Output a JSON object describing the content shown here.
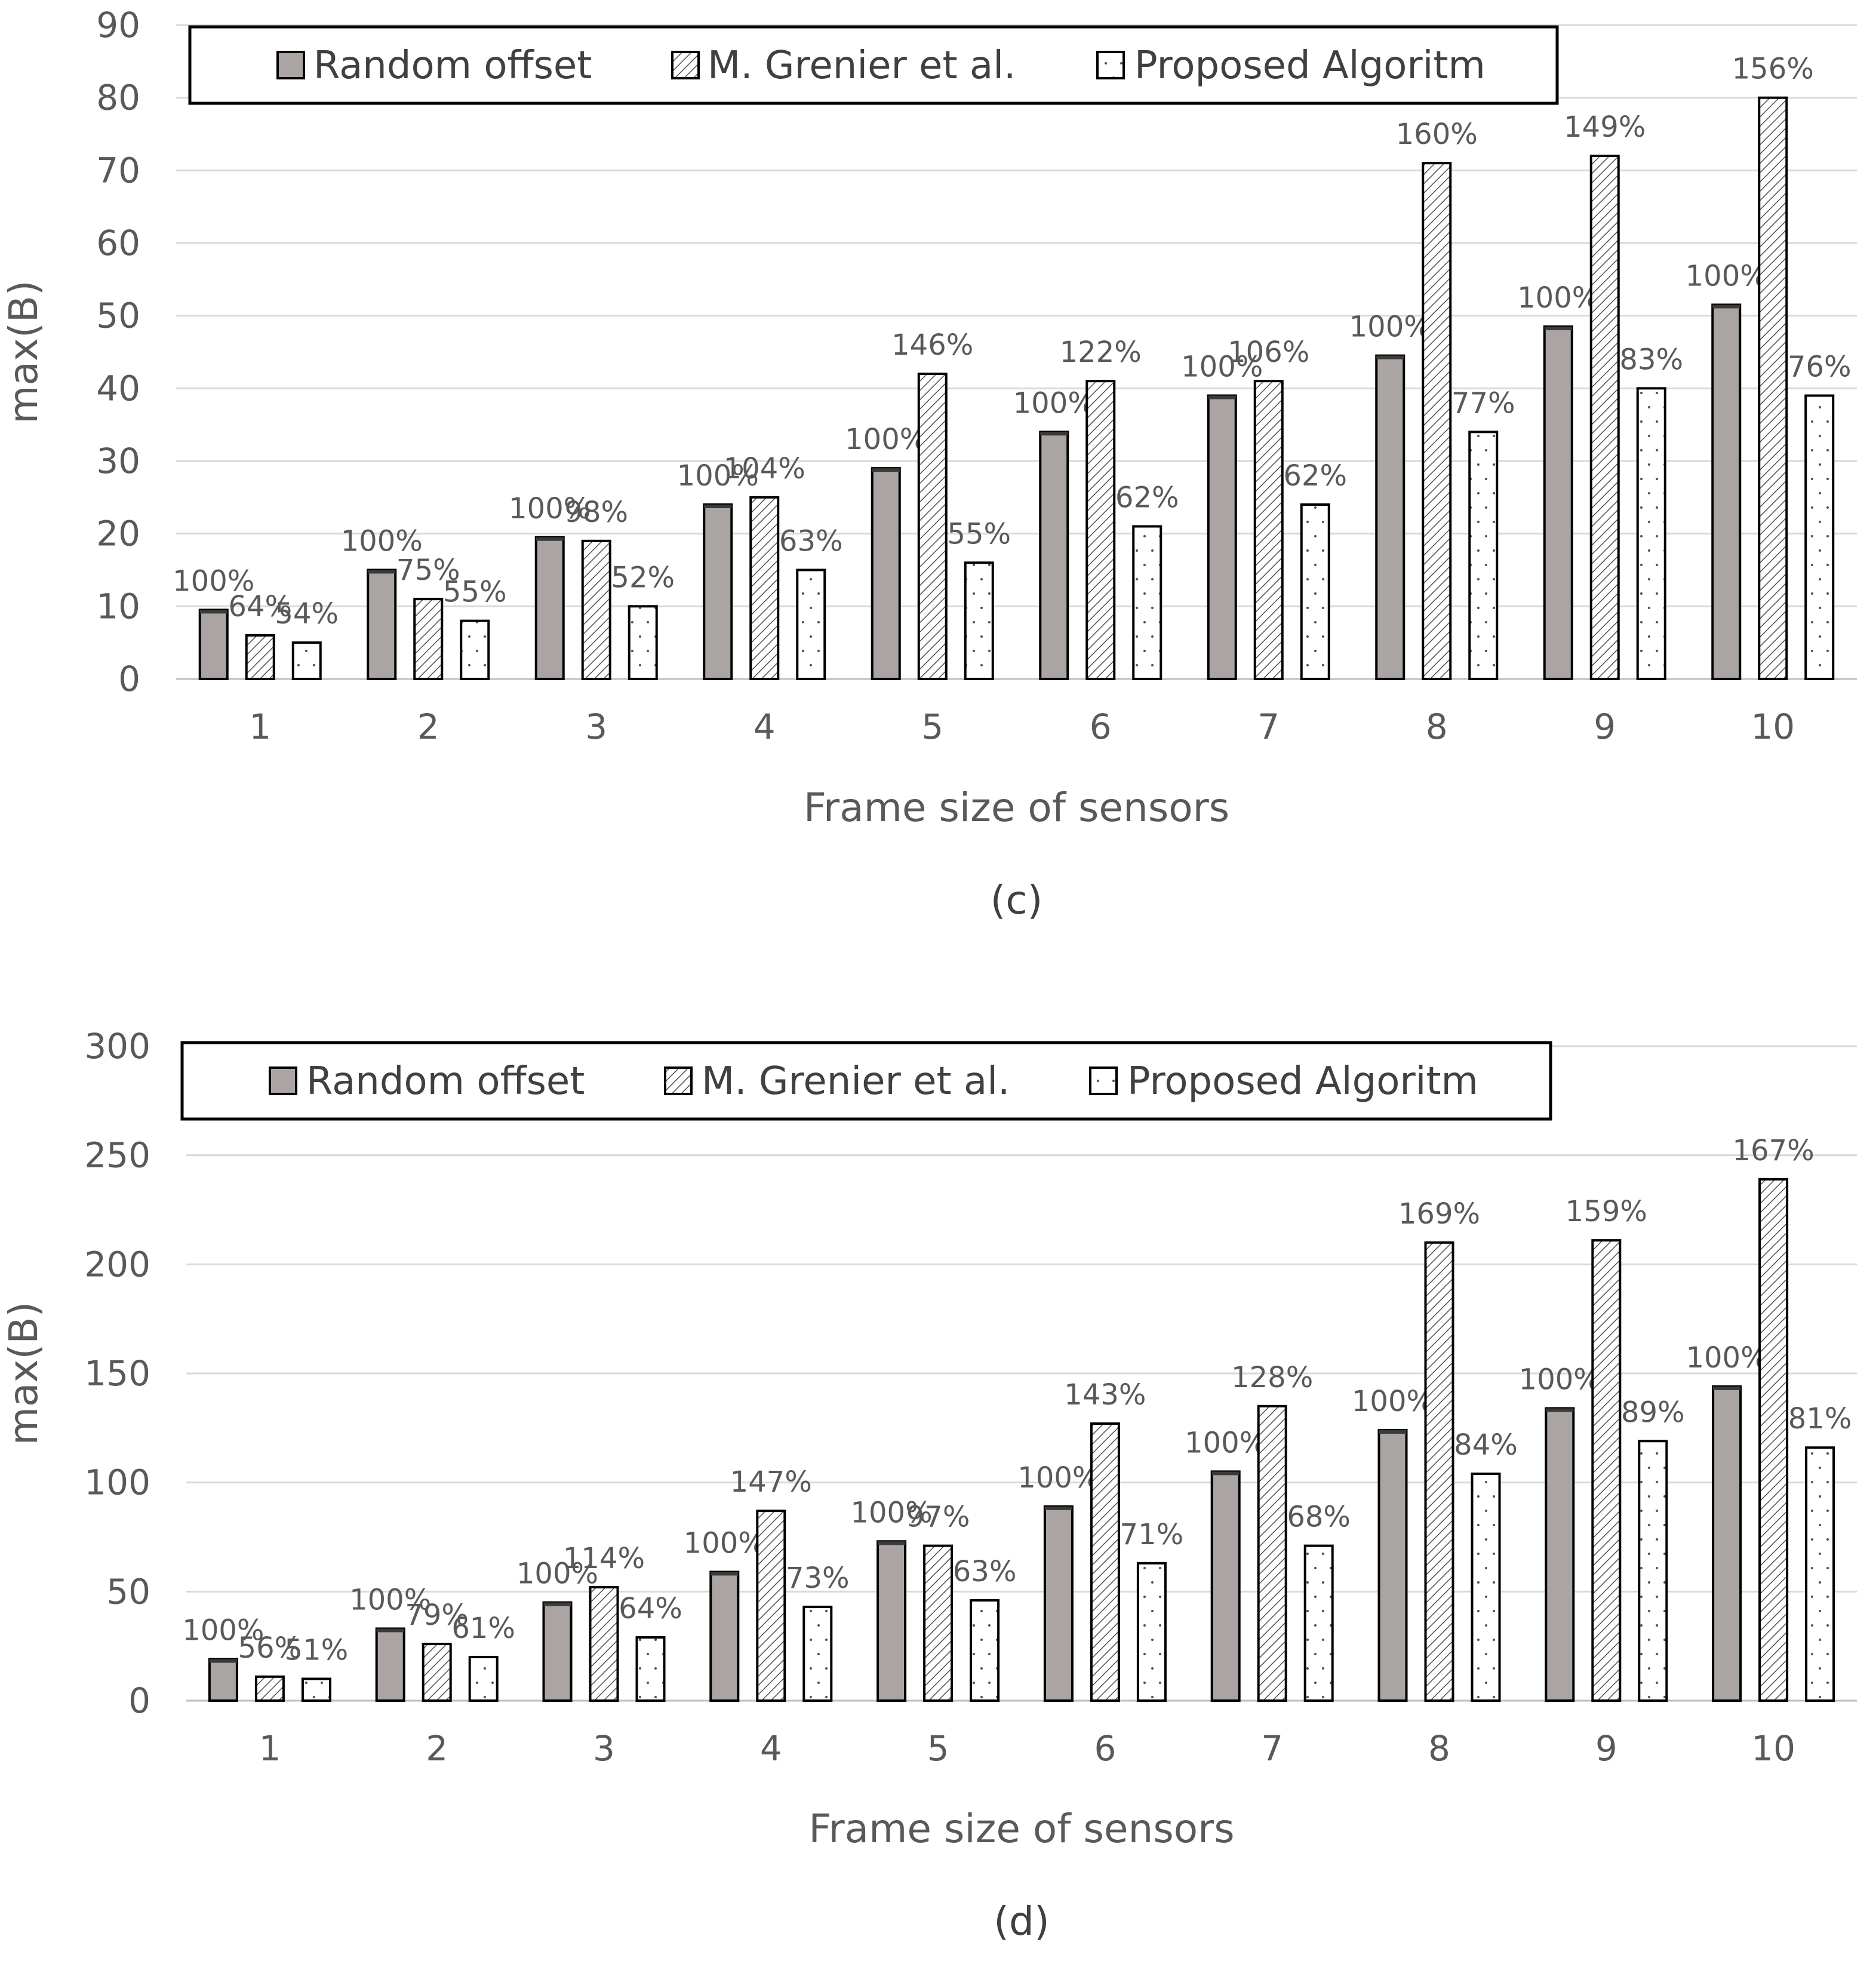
{
  "chart_data": [
    {
      "type": "bar",
      "panel_label": "(c)",
      "xlabel": "Frame size of sensors",
      "ylabel": "max(B)",
      "ylim": [
        0,
        90
      ],
      "yticks": [
        0,
        10,
        20,
        30,
        40,
        50,
        60,
        70,
        80,
        90
      ],
      "grid": true,
      "legend_position": "top",
      "categories": [
        "1",
        "2",
        "3",
        "4",
        "5",
        "6",
        "7",
        "8",
        "9",
        "10"
      ],
      "series": [
        {
          "name": "Random offset",
          "pattern": "solid-gray",
          "values": [
            9.5,
            15,
            19.5,
            24,
            29,
            34,
            39,
            44.5,
            48.5,
            51.5
          ],
          "labels": [
            "100%",
            "100%",
            "100%",
            "100%",
            "100%",
            "100%",
            "100%",
            "100%",
            "100%",
            "100%"
          ]
        },
        {
          "name": "M. Grenier et al.",
          "pattern": "hatch",
          "values": [
            6,
            11,
            19,
            25,
            42,
            41,
            41,
            71,
            72,
            80
          ],
          "labels": [
            "64%",
            "75%",
            "98%",
            "104%",
            "146%",
            "122%",
            "106%",
            "160%",
            "149%",
            "156%"
          ]
        },
        {
          "name": "Proposed Algoritm",
          "pattern": "dots",
          "values": [
            5,
            8,
            10,
            15,
            16,
            21,
            24,
            34,
            40,
            39
          ],
          "labels": [
            "54%",
            "55%",
            "52%",
            "63%",
            "55%",
            "62%",
            "62%",
            "77%",
            "83%",
            "76%"
          ]
        }
      ]
    },
    {
      "type": "bar",
      "panel_label": "(d)",
      "xlabel": "Frame size of sensors",
      "ylabel": "max(B)",
      "ylim": [
        0,
        300
      ],
      "yticks": [
        0,
        50,
        100,
        150,
        200,
        250,
        300
      ],
      "grid": true,
      "legend_position": "top",
      "categories": [
        "1",
        "2",
        "3",
        "4",
        "5",
        "6",
        "7",
        "8",
        "9",
        "10"
      ],
      "series": [
        {
          "name": "Random offset",
          "pattern": "solid-gray",
          "values": [
            19,
            33,
            45,
            59,
            73,
            89,
            105,
            124,
            134,
            144
          ],
          "labels": [
            "100%",
            "100%",
            "100%",
            "100%",
            "100%",
            "100%",
            "100%",
            "100%",
            "100%",
            "100%"
          ]
        },
        {
          "name": "M. Grenier et al.",
          "pattern": "hatch",
          "values": [
            11,
            26,
            52,
            87,
            71,
            127,
            135,
            210,
            211,
            239
          ],
          "labels": [
            "56%",
            "79%",
            "114%",
            "147%",
            "97%",
            "143%",
            "128%",
            "169%",
            "159%",
            "167%"
          ]
        },
        {
          "name": "Proposed Algoritm",
          "pattern": "dots",
          "values": [
            10,
            20,
            29,
            43,
            46,
            63,
            71,
            104,
            119,
            116
          ],
          "labels": [
            "51%",
            "61%",
            "64%",
            "73%",
            "63%",
            "71%",
            "68%",
            "84%",
            "89%",
            "81%"
          ]
        }
      ]
    }
  ]
}
